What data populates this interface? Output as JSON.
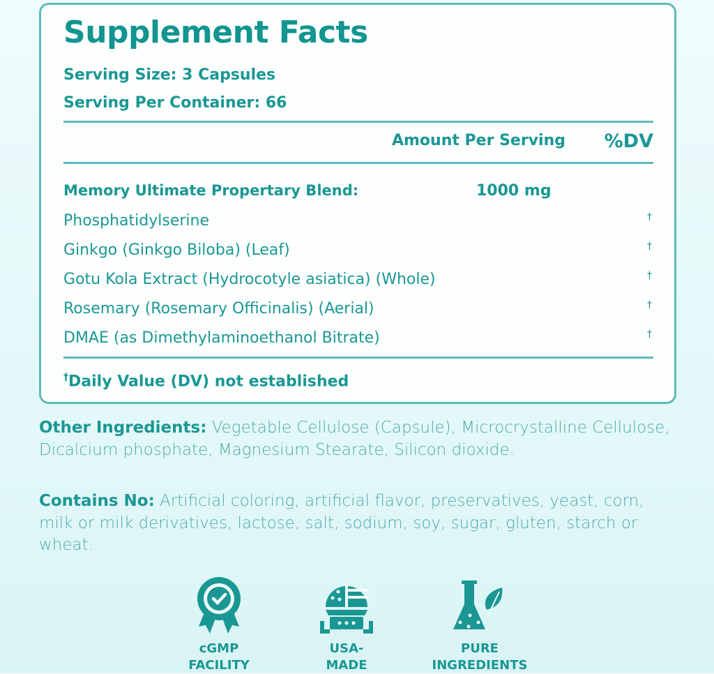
{
  "panel": {
    "title": "Supplement Facts",
    "serving_size": "Serving Size: 3 Capsules",
    "servings_per_container": "Serving Per Container: 66",
    "amount_header": "Amount Per Serving",
    "dv_header": "%DV",
    "blend": {
      "name": "Memory Ultimate Propertary Blend:",
      "amount": "1000 mg"
    },
    "ingredients": [
      {
        "name": "Phosphatidylserine",
        "dv": "†"
      },
      {
        "name": "Ginkgo (Ginkgo Biloba) (Leaf)",
        "dv": "†"
      },
      {
        "name": "Gotu Kola Extract (Hydrocotyle asiatica) (Whole)",
        "dv": "†"
      },
      {
        "name": "Rosemary (Rosemary Officinalis) (Aerial)",
        "dv": "†"
      },
      {
        "name": "DMAE (as Dimethylaminoethanol Bitrate)",
        "dv": "†"
      }
    ],
    "footnote_mark": "†",
    "footnote": "Daily Value (DV) not established"
  },
  "other_ingredients": {
    "label": "Other Ingredients:",
    "text": " Vegetable Cellulose (Capsule), Microcrystalline Cellulose, Dicalcium phosphate, Magnesium Stearate, Silicon dioxide."
  },
  "contains_no": {
    "label": "Contains No:",
    "text": " Artificial coloring, artificial flavor, preservatives, yeast, corn, milk or milk derivatives, lactose, salt, sodium, soy, sugar, gluten, starch or wheat."
  },
  "badges": [
    {
      "icon": "award-check-icon",
      "line1": "cGMP",
      "line2": "FACILITY"
    },
    {
      "icon": "usa-flag-globe-icon",
      "line1": "USA-",
      "line2": "MADE"
    },
    {
      "icon": "flask-leaf-icon",
      "line1": "PURE",
      "line2": "INGREDIENTS"
    }
  ],
  "colors": {
    "accent": "#1a9793",
    "border": "#5fb9b8",
    "background": "#e4f8f9"
  }
}
